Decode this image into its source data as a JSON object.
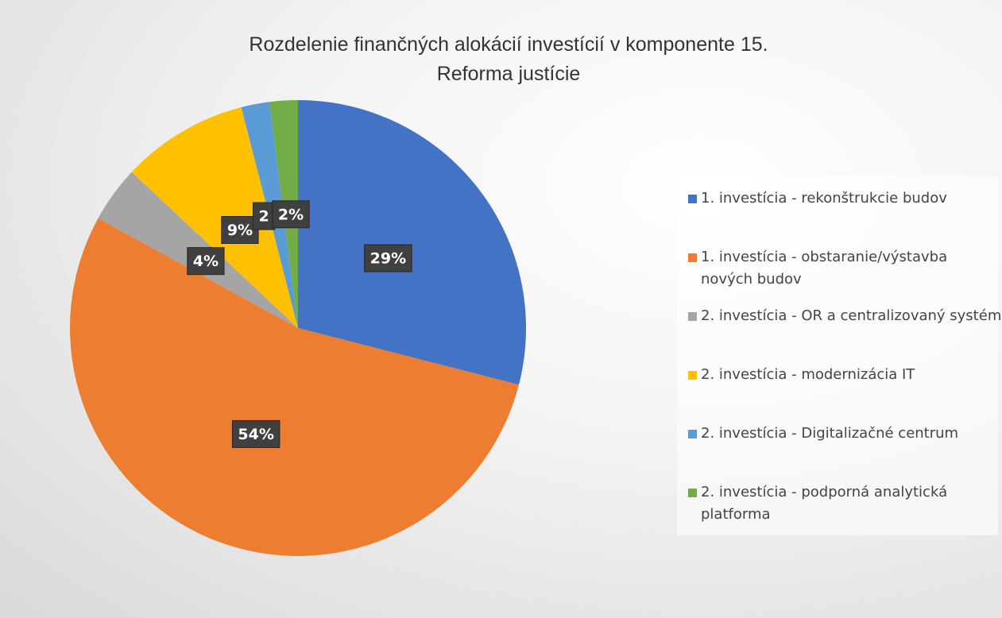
{
  "chart_data": {
    "type": "pie",
    "title": [
      "Rozdelenie finančných alokácií investícií v komponente 15.",
      "Reforma justície"
    ],
    "categories": [
      "1. investícia - rekonštrukcie budov",
      "1. investícia - obstaranie/výstavba nových budov",
      "2. investícia - OR a centralizovaný systém",
      "2. investícia - modernizácia IT",
      "2. investícia - Digitalizačné centrum",
      "2. investícia - podporná analytická platforma"
    ],
    "values": [
      29,
      54,
      4,
      9,
      2,
      2
    ],
    "value_labels": [
      "29%",
      "54%",
      "4%",
      "9%",
      "2",
      "2%"
    ],
    "colors": [
      "#4472c4",
      "#ed7d31",
      "#a5a5a5",
      "#ffc000",
      "#5b9bd5",
      "#70ad47"
    ],
    "legend": "right"
  }
}
